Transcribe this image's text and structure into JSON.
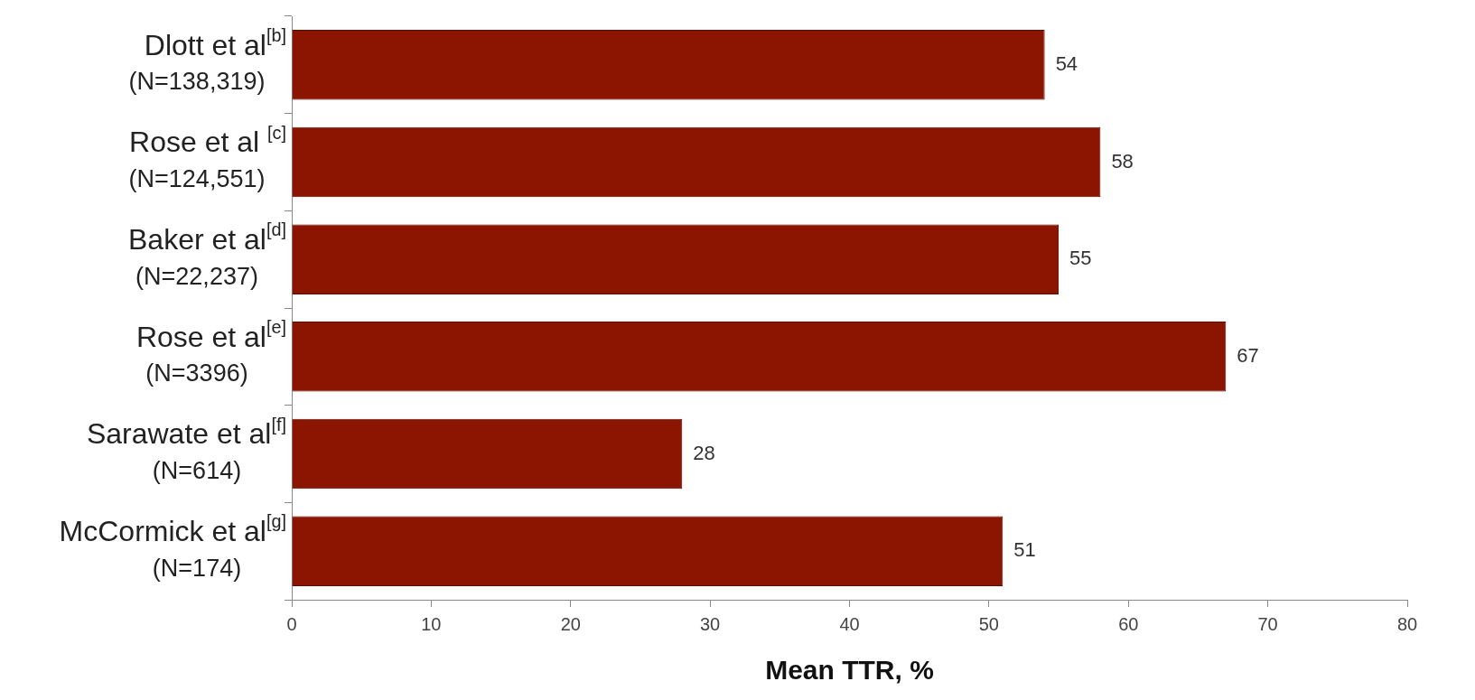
{
  "chart_data": {
    "type": "bar",
    "orientation": "horizontal",
    "xlabel": "Mean TTR, %",
    "categories": [
      "Dlott et al$^{[b]}$\n(N=138,319)",
      "Rose et al $^{[c]}$\n(N=124,551)",
      "Baker et al$^{[d]}$\n(N=22,237)",
      "Rose et al$^{[e]}$\n(N=3396)",
      "Sarawate et al$^{[f]}$\n(N=614)",
      "McCormick et al$^{[g]}$\n(N=174)"
    ],
    "values": [
      54,
      58,
      55,
      67,
      28,
      51
    ],
    "color": "#8b1500",
    "xlim": [
      0,
      80
    ],
    "xticks": [
      0,
      10,
      20,
      30,
      40,
      50,
      60,
      70,
      80
    ],
    "grid": false,
    "legend": false,
    "data_labels": true
  }
}
